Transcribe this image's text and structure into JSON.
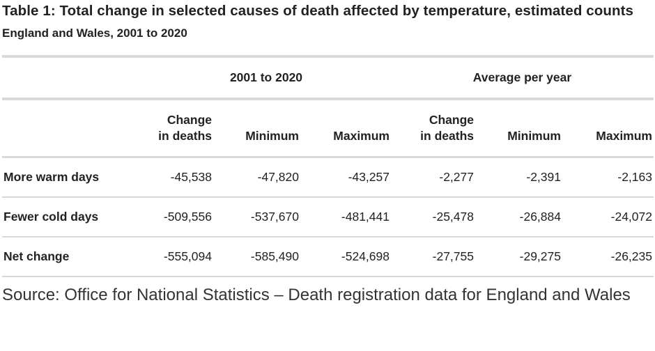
{
  "title": "Table 1: Total change in selected causes of death affected by temperature, estimated counts",
  "subtitle": "England and Wales, 2001 to 2020",
  "group_headers": [
    "2001 to 2020",
    "Average per year"
  ],
  "column_headers": [
    {
      "line1": "Change",
      "line2": "in deaths"
    },
    {
      "line1": "",
      "line2": "Minimum"
    },
    {
      "line1": "",
      "line2": "Maximum"
    },
    {
      "line1": "Change",
      "line2": "in deaths"
    },
    {
      "line1": "",
      "line2": "Minimum"
    },
    {
      "line1": "",
      "line2": "Maximum"
    }
  ],
  "rows": [
    {
      "label": "More warm days",
      "values": [
        "-45,538",
        "-47,820",
        "-43,257",
        "-2,277",
        "-2,391",
        "-2,163"
      ]
    },
    {
      "label": "Fewer cold days",
      "values": [
        "-509,556",
        "-537,670",
        "-481,441",
        "-25,478",
        "-26,884",
        "-24,072"
      ]
    },
    {
      "label": "Net change",
      "values": [
        "-555,094",
        "-585,490",
        "-524,698",
        "-27,755",
        "-29,275",
        "-26,235"
      ]
    }
  ],
  "source": "Source: Office for National Statistics – Death registration data for England and Wales"
}
